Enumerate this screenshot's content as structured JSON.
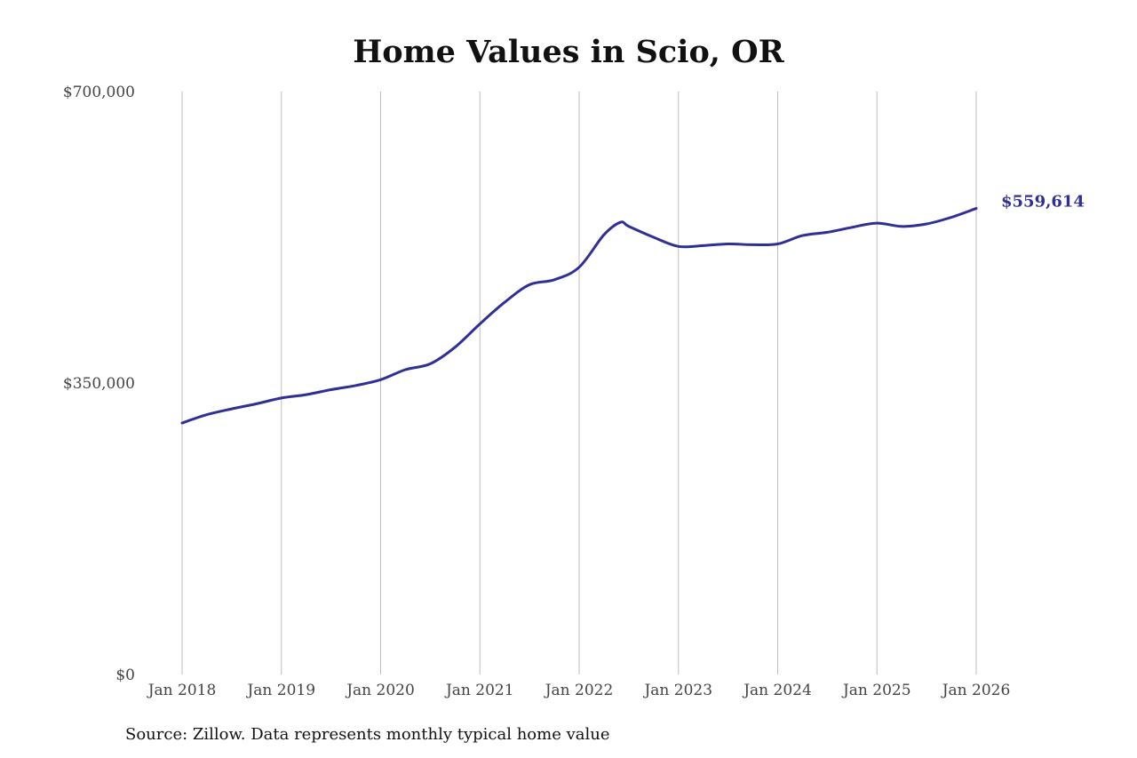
{
  "chart_data": {
    "type": "line",
    "title": "Home Values in Scio, OR",
    "source": "Source: Zillow. Data represents monthly typical home value",
    "ylim": [
      0,
      700000
    ],
    "yticks": [
      0,
      350000,
      700000
    ],
    "ytick_labels": [
      "$0",
      "$350,000",
      "$700,000"
    ],
    "xticks": [
      "2018-01",
      "2019-01",
      "2020-01",
      "2021-01",
      "2022-01",
      "2023-01",
      "2024-01",
      "2025-01",
      "2026-01"
    ],
    "xtick_labels": [
      "Jan 2018",
      "Jan 2019",
      "Jan 2020",
      "Jan 2021",
      "Jan 2022",
      "Jan 2023",
      "Jan 2024",
      "Jan 2025",
      "Jan 2026"
    ],
    "grid": "vertical",
    "line_color": "#2f2f96",
    "series": [
      {
        "end_label": "$559,614",
        "points": [
          [
            "2018-01",
            302000
          ],
          [
            "2018-04",
            312000
          ],
          [
            "2018-07",
            319000
          ],
          [
            "2018-10",
            325000
          ],
          [
            "2019-01",
            332000
          ],
          [
            "2019-04",
            336000
          ],
          [
            "2019-07",
            342000
          ],
          [
            "2019-10",
            347000
          ],
          [
            "2020-01",
            354000
          ],
          [
            "2020-04",
            366000
          ],
          [
            "2020-07",
            373000
          ],
          [
            "2020-10",
            393000
          ],
          [
            "2021-01",
            421000
          ],
          [
            "2021-04",
            447000
          ],
          [
            "2021-07",
            468000
          ],
          [
            "2021-10",
            474000
          ],
          [
            "2022-01",
            489000
          ],
          [
            "2022-04",
            528000
          ],
          [
            "2022-06",
            543000
          ],
          [
            "2022-07",
            538000
          ],
          [
            "2022-10",
            525000
          ],
          [
            "2023-01",
            514000
          ],
          [
            "2023-04",
            515000
          ],
          [
            "2023-07",
            517000
          ],
          [
            "2023-10",
            516000
          ],
          [
            "2024-01",
            517000
          ],
          [
            "2024-04",
            527000
          ],
          [
            "2024-07",
            531000
          ],
          [
            "2024-10",
            537000
          ],
          [
            "2025-01",
            542000
          ],
          [
            "2025-04",
            538000
          ],
          [
            "2025-07",
            541000
          ],
          [
            "2025-10",
            549000
          ],
          [
            "2026-01",
            559614
          ]
        ]
      }
    ]
  }
}
